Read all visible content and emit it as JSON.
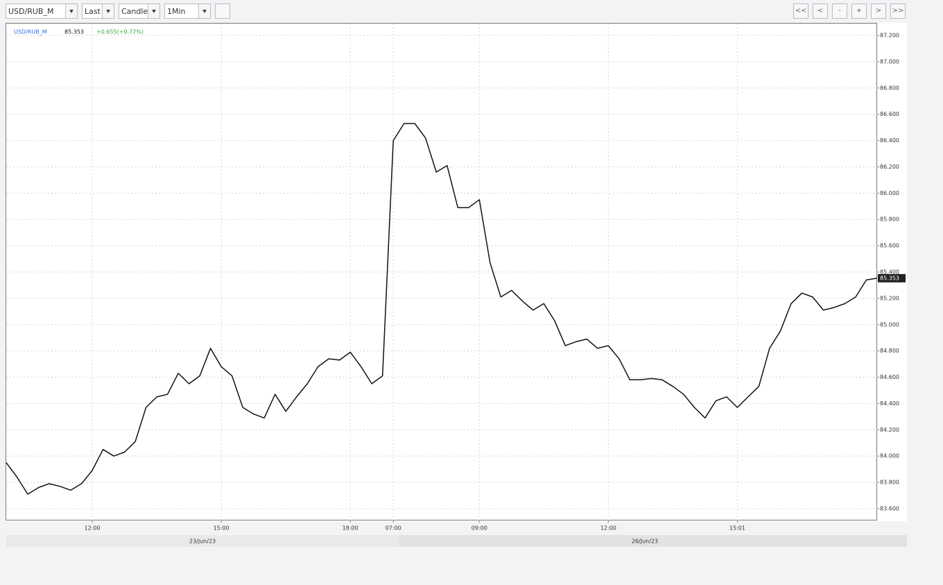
{
  "toolbar": {
    "symbol": "USD/RUB_M",
    "price_type": "Last",
    "chart_type": "Candle",
    "period": "1Min",
    "nav": [
      "<<",
      "<",
      "-",
      "+",
      ">",
      ">>"
    ]
  },
  "chart_data": {
    "type": "line",
    "color": "#111111",
    "grid": true,
    "header": {
      "symbol": "USD/RUB_M",
      "last": 85.353,
      "change": "+0.655(+0.77%)"
    },
    "categories": [
      null,
      null,
      null,
      null,
      null,
      null,
      null,
      null,
      "12:00",
      null,
      null,
      null,
      null,
      null,
      null,
      null,
      null,
      null,
      null,
      null,
      "15:00",
      null,
      null,
      null,
      null,
      null,
      null,
      null,
      null,
      null,
      null,
      null,
      "18:00",
      null,
      null,
      null,
      "07:00",
      null,
      null,
      null,
      null,
      null,
      null,
      null,
      "09:00",
      null,
      null,
      null,
      null,
      null,
      null,
      null,
      null,
      null,
      null,
      null,
      "12:00",
      null,
      null,
      null,
      null,
      null,
      null,
      null,
      null,
      null,
      null,
      null,
      "15:01",
      null,
      null,
      null,
      null,
      null,
      null,
      null,
      null,
      null,
      null,
      null,
      null,
      null
    ],
    "values": [
      83.95,
      83.84,
      83.71,
      83.76,
      83.79,
      83.77,
      83.74,
      83.79,
      83.89,
      84.05,
      84.0,
      84.03,
      84.11,
      84.37,
      84.45,
      84.47,
      84.63,
      84.55,
      84.61,
      84.82,
      84.68,
      84.61,
      84.37,
      84.32,
      84.29,
      84.47,
      84.34,
      84.45,
      84.55,
      84.68,
      84.74,
      84.73,
      84.79,
      84.68,
      84.55,
      84.61,
      86.4,
      86.53,
      86.53,
      86.42,
      86.16,
      86.21,
      85.89,
      85.89,
      85.95,
      85.47,
      85.21,
      85.26,
      85.18,
      85.11,
      85.16,
      85.03,
      84.84,
      84.87,
      84.89,
      84.82,
      84.84,
      84.74,
      84.58,
      84.58,
      84.59,
      84.58,
      84.53,
      84.47,
      84.37,
      84.29,
      84.42,
      84.45,
      84.37,
      84.45,
      84.53,
      84.82,
      84.95,
      85.16,
      85.24,
      85.21,
      85.11,
      85.13,
      85.16,
      85.21,
      85.34,
      85.353
    ],
    "ylim": [
      83.51,
      87.29
    ],
    "yticks": [
      {
        "value": 83.6,
        "label": "83.600"
      },
      {
        "value": 83.8,
        "label": "83.800"
      },
      {
        "value": 84,
        "label": "84.000"
      },
      {
        "value": 84.2,
        "label": "84.200"
      },
      {
        "value": 84.4,
        "label": "84.400"
      },
      {
        "value": 84.6,
        "label": "84.600"
      },
      {
        "value": 84.8,
        "label": "84.800"
      },
      {
        "value": 85,
        "label": "85.000"
      },
      {
        "value": 85.2,
        "label": "85.200"
      },
      {
        "value": 85.4,
        "label": "85.400"
      },
      {
        "value": 85.6,
        "label": "85.600"
      },
      {
        "value": 85.8,
        "label": "85.800"
      },
      {
        "value": 86,
        "label": "86.000"
      },
      {
        "value": 86.2,
        "label": "86.200"
      },
      {
        "value": 86.4,
        "label": "86.400"
      },
      {
        "value": 86.6,
        "label": "86.600"
      },
      {
        "value": 86.8,
        "label": "86.800"
      },
      {
        "value": 87,
        "label": "87.000"
      },
      {
        "value": 87.2,
        "label": "87.200"
      }
    ],
    "dates": [
      "23/Jun/23",
      "26/Jun/23"
    ]
  }
}
